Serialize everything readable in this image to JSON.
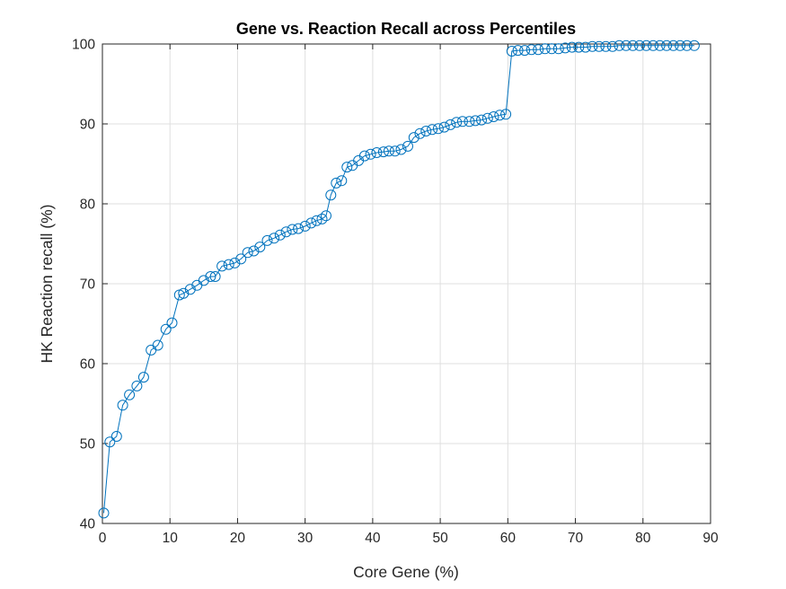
{
  "chart_data": {
    "type": "line",
    "title": "Gene vs. Reaction Recall across Percentiles",
    "xlabel": "Core Gene (%)",
    "ylabel": "HK Reaction recall (%)",
    "xlim": [
      0,
      90
    ],
    "ylim": [
      40,
      100
    ],
    "xticks": [
      0,
      10,
      20,
      30,
      40,
      50,
      60,
      70,
      80,
      90
    ],
    "yticks": [
      40,
      50,
      60,
      70,
      80,
      90,
      100
    ],
    "grid": true,
    "marker": "circle",
    "color": "#0072bd",
    "x": [
      0.2,
      1.1,
      2.1,
      3.0,
      4.0,
      5.1,
      6.1,
      7.2,
      8.2,
      9.4,
      10.3,
      11.4,
      12.0,
      13.0,
      14.0,
      15.0,
      16.0,
      16.7,
      17.7,
      18.7,
      19.6,
      20.5,
      21.5,
      22.4,
      23.3,
      24.4,
      25.4,
      26.3,
      27.2,
      28.1,
      29.0,
      30.0,
      30.9,
      31.7,
      32.5,
      33.1,
      33.8,
      34.6,
      35.4,
      36.2,
      37.0,
      37.9,
      38.8,
      39.7,
      40.6,
      41.6,
      42.4,
      43.3,
      44.2,
      45.2,
      46.1,
      47.0,
      47.9,
      48.8,
      49.7,
      50.6,
      51.5,
      52.4,
      53.3,
      54.3,
      55.2,
      56.1,
      57.0,
      57.9,
      58.8,
      59.7,
      60.6,
      61.5,
      62.5,
      63.5,
      64.5,
      65.5,
      66.5,
      67.5,
      68.5,
      69.5,
      70.5,
      71.5,
      72.5,
      73.5,
      74.5,
      75.5,
      76.5,
      77.5,
      78.5,
      79.5,
      80.5,
      81.5,
      82.5,
      83.5,
      84.5,
      85.5,
      86.5,
      87.6
    ],
    "y": [
      41.3,
      50.2,
      50.9,
      54.8,
      56.1,
      57.2,
      58.3,
      61.7,
      62.3,
      64.3,
      65.1,
      68.6,
      68.8,
      69.3,
      69.8,
      70.4,
      70.9,
      70.9,
      72.2,
      72.4,
      72.6,
      73.1,
      73.9,
      74.1,
      74.6,
      75.4,
      75.7,
      76.1,
      76.5,
      76.8,
      76.9,
      77.2,
      77.6,
      77.9,
      78.1,
      78.5,
      81.1,
      82.6,
      82.9,
      84.6,
      84.8,
      85.4,
      86.0,
      86.2,
      86.4,
      86.5,
      86.6,
      86.6,
      86.8,
      87.2,
      88.3,
      88.8,
      89.1,
      89.3,
      89.4,
      89.6,
      89.9,
      90.2,
      90.3,
      90.3,
      90.4,
      90.5,
      90.7,
      90.9,
      91.1,
      91.2,
      99.1,
      99.2,
      99.2,
      99.3,
      99.3,
      99.4,
      99.4,
      99.4,
      99.5,
      99.6,
      99.6,
      99.6,
      99.7,
      99.7,
      99.7,
      99.7,
      99.8,
      99.8,
      99.8,
      99.8,
      99.8,
      99.8,
      99.8,
      99.8,
      99.8,
      99.8,
      99.8,
      99.8
    ]
  }
}
